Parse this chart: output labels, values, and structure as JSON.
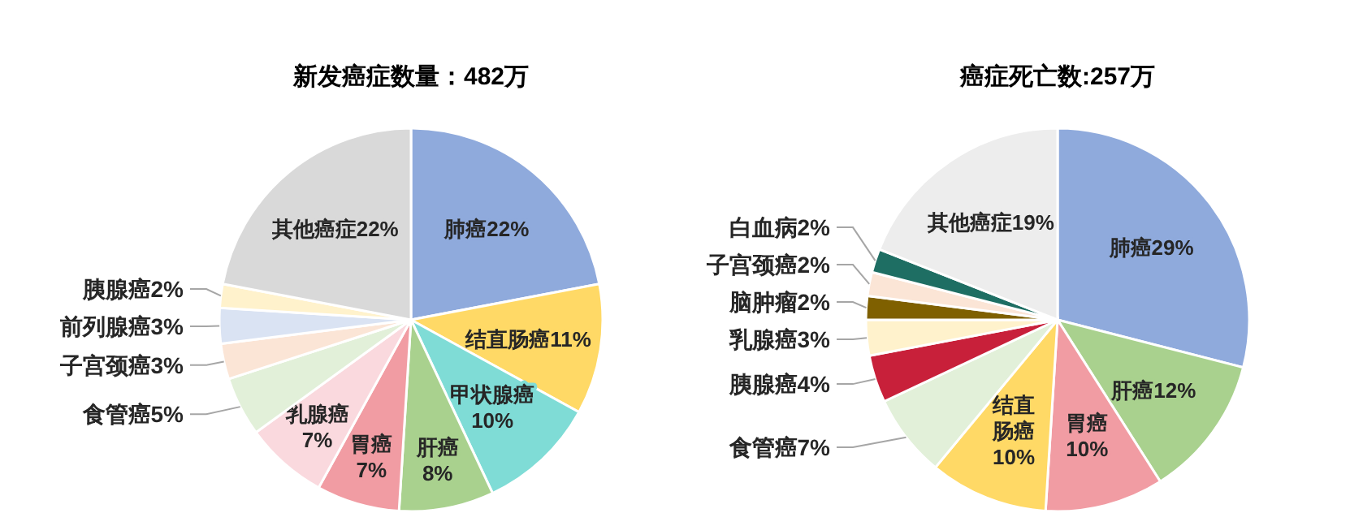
{
  "chart_data": [
    {
      "type": "pie",
      "title": "新发癌症数量：482万",
      "categories": [
        "肺癌",
        "结直肠癌",
        "甲状腺癌",
        "肝癌",
        "胃癌",
        "乳腺癌",
        "食管癌",
        "子宫颈癌",
        "前列腺癌",
        "胰腺癌",
        "其他癌症"
      ],
      "values": [
        22,
        11,
        10,
        8,
        7,
        7,
        5,
        3,
        3,
        2,
        22
      ],
      "value_labels": [
        "22%",
        "11%",
        "10%",
        "8%",
        "7%",
        "7%",
        "5%",
        "3%",
        "3%",
        "2%",
        "22%"
      ],
      "colors": [
        "#8faadc",
        "#ffd966",
        "#7fdcd6",
        "#a9d18e",
        "#f19ca3",
        "#fad9de",
        "#e2f0d9",
        "#fbe5d6",
        "#dae3f3",
        "#fff2cc",
        "#d9d9d9"
      ]
    },
    {
      "type": "pie",
      "title": "癌症死亡数:257万",
      "categories": [
        "肺癌",
        "肝癌",
        "胃癌",
        "结直肠癌",
        "食管癌",
        "胰腺癌",
        "乳腺癌",
        "脑肿瘤",
        "子宫颈癌",
        "白血病",
        "其他癌症"
      ],
      "values": [
        29,
        12,
        10,
        10,
        7,
        4,
        3,
        2,
        2,
        2,
        19
      ],
      "value_labels": [
        "29%",
        "12%",
        "10%",
        "10%",
        "7%",
        "4%",
        "3%",
        "2%",
        "2%",
        "2%",
        "19%"
      ],
      "colors": [
        "#8faadc",
        "#a9d18e",
        "#f19ca3",
        "#ffd966",
        "#e2f0d9",
        "#c8203a",
        "#fff2cc",
        "#7f6000",
        "#fbe5d6",
        "#1e6e63",
        "#ededed"
      ]
    }
  ]
}
